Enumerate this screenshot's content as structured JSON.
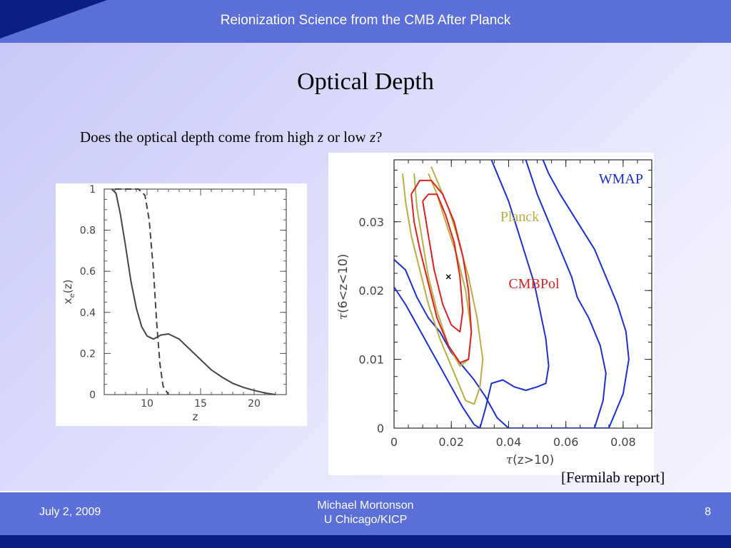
{
  "header": {
    "title": "Reionization Science from the CMB After Planck"
  },
  "slide": {
    "title": "Optical Depth",
    "question_pre": "Does the optical depth come from high ",
    "question_z1": "z",
    "question_mid": " or low ",
    "question_z2": "z",
    "question_post": "?",
    "reference": "[Fermilab report]"
  },
  "chart_data": [
    {
      "type": "line",
      "xlabel": "z",
      "ylabel": "x",
      "ylabel_sub": "e",
      "ylabel_post": "(z)",
      "xlim": [
        6,
        23
      ],
      "ylim": [
        0,
        1
      ],
      "x_ticks": [
        10,
        15,
        20
      ],
      "y_ticks": [
        "0",
        "0.2",
        "0.4",
        "0.6",
        "0.8",
        "1"
      ],
      "grid": false,
      "series": [
        {
          "style": "solid",
          "color": "#444444",
          "points": [
            [
              6.7,
              1.0
            ],
            [
              7.1,
              0.98
            ],
            [
              7.5,
              0.88
            ],
            [
              8.0,
              0.72
            ],
            [
              8.5,
              0.55
            ],
            [
              9.0,
              0.42
            ],
            [
              9.5,
              0.33
            ],
            [
              10.0,
              0.285
            ],
            [
              10.6,
              0.27
            ],
            [
              11.3,
              0.29
            ],
            [
              12.0,
              0.295
            ],
            [
              13.0,
              0.27
            ],
            [
              14.0,
              0.22
            ],
            [
              15.0,
              0.17
            ],
            [
              16.0,
              0.12
            ],
            [
              17.0,
              0.085
            ],
            [
              18.0,
              0.055
            ],
            [
              19.0,
              0.035
            ],
            [
              20.0,
              0.02
            ],
            [
              21.0,
              0.008
            ],
            [
              22.0,
              0.0
            ]
          ]
        },
        {
          "style": "dashed",
          "color": "#444444",
          "points": [
            [
              7.0,
              1.0
            ],
            [
              9.2,
              1.0
            ],
            [
              9.8,
              0.97
            ],
            [
              10.2,
              0.85
            ],
            [
              10.6,
              0.6
            ],
            [
              10.9,
              0.35
            ],
            [
              11.2,
              0.15
            ],
            [
              11.5,
              0.04
            ],
            [
              12.0,
              0.0
            ]
          ]
        }
      ]
    },
    {
      "type": "contour",
      "xlabel_pre": "τ",
      "xlabel_post": "(z>10)",
      "ylabel_pre": "τ",
      "ylabel_post": "(6<z<10)",
      "xlim": [
        0,
        0.09
      ],
      "ylim": [
        0,
        0.039
      ],
      "x_ticks": [
        "0",
        "0.02",
        "0.04",
        "0.06",
        "0.08"
      ],
      "y_ticks": [
        "0",
        "0.01",
        "0.02",
        "0.03"
      ],
      "fiducial": [
        0.019,
        0.022
      ],
      "series": [
        {
          "name": "WMAP",
          "color": "#1a2fd6",
          "contours": [
            [
              [
                0.0,
                0.0245
              ],
              [
                0.004,
                0.023
              ],
              [
                0.008,
                0.019
              ],
              [
                0.012,
                0.016
              ],
              [
                0.016,
                0.014
              ],
              [
                0.02,
                0.011
              ],
              [
                0.024,
                0.009
              ],
              [
                0.028,
                0.007
              ],
              [
                0.032,
                0.0045
              ],
              [
                0.036,
                0.0015
              ],
              [
                0.04,
                0.0
              ],
              [
                0.06,
                0.0
              ],
              [
                0.075,
                0.0
              ],
              [
                0.077,
                0.002
              ],
              [
                0.08,
                0.005
              ],
              [
                0.082,
                0.01
              ],
              [
                0.081,
                0.014
              ],
              [
                0.078,
                0.018
              ],
              [
                0.074,
                0.022
              ],
              [
                0.07,
                0.026
              ],
              [
                0.064,
                0.03
              ],
              [
                0.058,
                0.034
              ],
              [
                0.054,
                0.037
              ],
              [
                0.052,
                0.039
              ]
            ],
            [
              [
                0.0,
                0.0205
              ],
              [
                0.004,
                0.018
              ],
              [
                0.008,
                0.015
              ],
              [
                0.012,
                0.012
              ],
              [
                0.016,
                0.009
              ],
              [
                0.02,
                0.006
              ],
              [
                0.024,
                0.003
              ],
              [
                0.028,
                0.0005
              ],
              [
                0.03,
                0.0
              ]
            ],
            [
              [
                0.03,
                0.0
              ],
              [
                0.032,
                0.003
              ],
              [
                0.034,
                0.0065
              ],
              [
                0.038,
                0.007
              ],
              [
                0.042,
                0.006
              ],
              [
                0.046,
                0.0055
              ],
              [
                0.05,
                0.006
              ],
              [
                0.053,
                0.0065
              ],
              [
                0.054,
                0.009
              ],
              [
                0.053,
                0.013
              ],
              [
                0.051,
                0.017
              ],
              [
                0.049,
                0.021
              ],
              [
                0.046,
                0.025
              ],
              [
                0.043,
                0.029
              ],
              [
                0.04,
                0.033
              ],
              [
                0.037,
                0.036
              ],
              [
                0.034,
                0.039
              ]
            ],
            [
              [
                0.07,
                0.0
              ],
              [
                0.073,
                0.004
              ],
              [
                0.074,
                0.008
              ],
              [
                0.072,
                0.012
              ],
              [
                0.068,
                0.016
              ],
              [
                0.064,
                0.019
              ],
              [
                0.062,
                0.022
              ],
              [
                0.058,
                0.026
              ],
              [
                0.054,
                0.03
              ],
              [
                0.05,
                0.034
              ],
              [
                0.046,
                0.039
              ]
            ]
          ]
        },
        {
          "name": "Planck",
          "color": "#b8b040",
          "contours": [
            [
              [
                0.003,
                0.037
              ],
              [
                0.004,
                0.033
              ],
              [
                0.006,
                0.028
              ],
              [
                0.009,
                0.023
              ],
              [
                0.012,
                0.018
              ],
              [
                0.016,
                0.013
              ],
              [
                0.021,
                0.008
              ],
              [
                0.025,
                0.004
              ],
              [
                0.028,
                0.0035
              ],
              [
                0.03,
                0.006
              ],
              [
                0.031,
                0.01
              ],
              [
                0.029,
                0.016
              ],
              [
                0.026,
                0.022
              ],
              [
                0.022,
                0.028
              ],
              [
                0.019,
                0.032
              ],
              [
                0.016,
                0.035
              ],
              [
                0.013,
                0.038
              ]
            ],
            [
              [
                0.007,
                0.037
              ],
              [
                0.008,
                0.032
              ],
              [
                0.01,
                0.027
              ],
              [
                0.012,
                0.022
              ],
              [
                0.015,
                0.017
              ],
              [
                0.019,
                0.012
              ],
              [
                0.023,
                0.009
              ],
              [
                0.026,
                0.01
              ],
              [
                0.027,
                0.014
              ],
              [
                0.025,
                0.02
              ],
              [
                0.022,
                0.025
              ],
              [
                0.018,
                0.03
              ],
              [
                0.015,
                0.034
              ],
              [
                0.012,
                0.037
              ]
            ]
          ]
        },
        {
          "name": "CMBPol",
          "color": "#e02020",
          "contours": [
            [
              [
                0.006,
                0.034
              ],
              [
                0.007,
                0.03
              ],
              [
                0.009,
                0.026
              ],
              [
                0.012,
                0.021
              ],
              [
                0.015,
                0.016
              ],
              [
                0.019,
                0.012
              ],
              [
                0.023,
                0.0095
              ],
              [
                0.026,
                0.01
              ],
              [
                0.027,
                0.014
              ],
              [
                0.026,
                0.02
              ],
              [
                0.024,
                0.025
              ],
              [
                0.021,
                0.03
              ],
              [
                0.017,
                0.034
              ],
              [
                0.013,
                0.036
              ],
              [
                0.009,
                0.036
              ],
              [
                0.006,
                0.034
              ]
            ],
            [
              [
                0.01,
                0.033
              ],
              [
                0.012,
                0.028
              ],
              [
                0.014,
                0.023
              ],
              [
                0.017,
                0.018
              ],
              [
                0.02,
                0.015
              ],
              [
                0.023,
                0.014
              ],
              [
                0.024,
                0.017
              ],
              [
                0.023,
                0.022
              ],
              [
                0.021,
                0.027
              ],
              [
                0.018,
                0.031
              ],
              [
                0.015,
                0.034
              ],
              [
                0.012,
                0.034
              ],
              [
                0.01,
                0.033
              ]
            ]
          ]
        }
      ]
    }
  ],
  "footer": {
    "date": "July 2, 2009",
    "author_line1": "Michael Mortonson",
    "author_line2": "U Chicago/KICP",
    "page": "8"
  }
}
